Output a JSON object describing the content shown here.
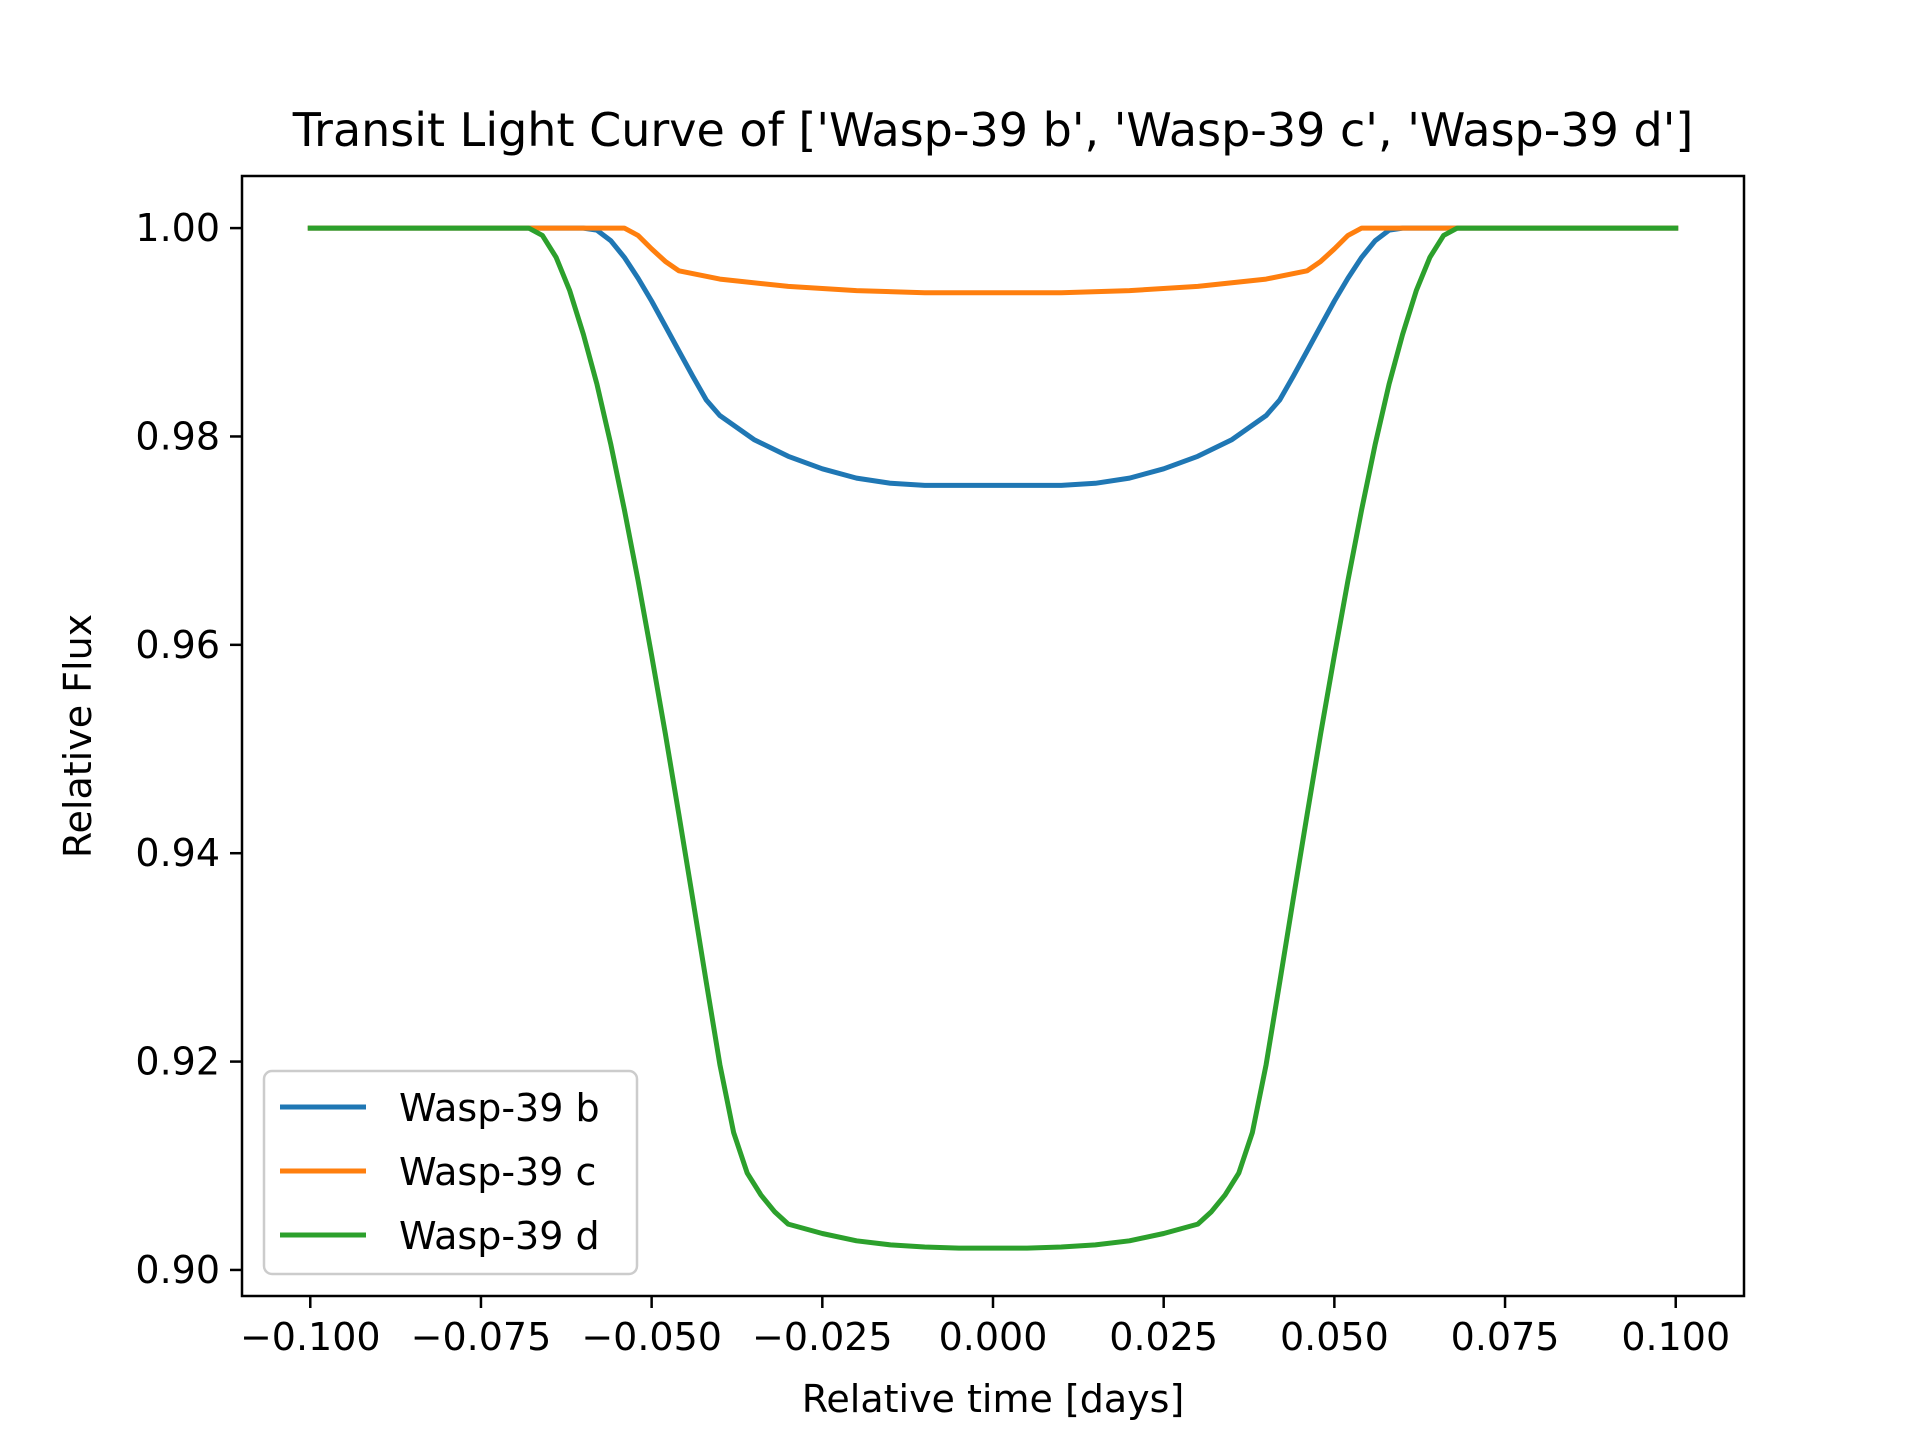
{
  "chart_data": {
    "type": "line",
    "title": "Transit Light Curve of ['Wasp-39 b', 'Wasp-39 c', 'Wasp-39 d']",
    "xlabel": "Relative time [days]",
    "ylabel": "Relative Flux",
    "xlim": [
      -0.11,
      0.11
    ],
    "ylim": [
      0.8975,
      1.005
    ],
    "x_ticks": [
      -0.1,
      -0.075,
      -0.05,
      -0.025,
      0.0,
      0.025,
      0.05,
      0.075,
      0.1
    ],
    "x_tick_labels": [
      "−0.100",
      "−0.075",
      "−0.050",
      "−0.025",
      "0.000",
      "0.025",
      "0.050",
      "0.075",
      "0.100"
    ],
    "y_ticks": [
      0.9,
      0.92,
      0.94,
      0.96,
      0.98,
      1.0
    ],
    "y_tick_labels": [
      "0.90",
      "0.92",
      "0.94",
      "0.96",
      "0.98",
      "1.00"
    ],
    "grid": false,
    "legend_position": "lower-left",
    "series": [
      {
        "name": "Wasp-39 b",
        "color": "#1f77b4",
        "x": [
          -0.1,
          -0.08,
          -0.06,
          -0.058,
          -0.056,
          -0.054,
          -0.052,
          -0.05,
          -0.048,
          -0.046,
          -0.044,
          -0.042,
          -0.04,
          -0.035,
          -0.03,
          -0.025,
          -0.02,
          -0.015,
          -0.01,
          -0.005,
          0.0,
          0.005,
          0.01,
          0.015,
          0.02,
          0.025,
          0.03,
          0.035,
          0.04,
          0.042,
          0.044,
          0.046,
          0.048,
          0.05,
          0.052,
          0.054,
          0.056,
          0.058,
          0.06,
          0.08,
          0.1
        ],
        "y": [
          1.0,
          1.0,
          1.0,
          0.9998,
          0.9988,
          0.9972,
          0.9952,
          0.993,
          0.9906,
          0.9882,
          0.9858,
          0.9835,
          0.982,
          0.9797,
          0.9781,
          0.9769,
          0.976,
          0.9755,
          0.9753,
          0.9753,
          0.9753,
          0.9753,
          0.9753,
          0.9755,
          0.976,
          0.9769,
          0.9781,
          0.9797,
          0.982,
          0.9835,
          0.9858,
          0.9882,
          0.9906,
          0.993,
          0.9952,
          0.9972,
          0.9988,
          0.9998,
          1.0,
          1.0,
          1.0
        ]
      },
      {
        "name": "Wasp-39 c",
        "color": "#ff7f0e",
        "x": [
          -0.1,
          -0.07,
          -0.054,
          -0.052,
          -0.05,
          -0.048,
          -0.046,
          -0.04,
          -0.03,
          -0.02,
          -0.01,
          0.0,
          0.01,
          0.02,
          0.03,
          0.04,
          0.046,
          0.048,
          0.05,
          0.052,
          0.054,
          0.07,
          0.1
        ],
        "y": [
          1.0,
          1.0,
          1.0,
          0.9993,
          0.998,
          0.9968,
          0.9959,
          0.9951,
          0.9944,
          0.994,
          0.9938,
          0.9938,
          0.9938,
          0.994,
          0.9944,
          0.9951,
          0.9959,
          0.9968,
          0.998,
          0.9993,
          1.0,
          1.0,
          1.0
        ]
      },
      {
        "name": "Wasp-39 d",
        "color": "#2ca02c",
        "x": [
          -0.1,
          -0.08,
          -0.068,
          -0.066,
          -0.064,
          -0.062,
          -0.06,
          -0.058,
          -0.056,
          -0.054,
          -0.052,
          -0.05,
          -0.048,
          -0.046,
          -0.044,
          -0.042,
          -0.04,
          -0.038,
          -0.036,
          -0.034,
          -0.032,
          -0.03,
          -0.025,
          -0.02,
          -0.015,
          -0.01,
          -0.005,
          0.0,
          0.005,
          0.01,
          0.015,
          0.02,
          0.025,
          0.03,
          0.032,
          0.034,
          0.036,
          0.038,
          0.04,
          0.042,
          0.044,
          0.046,
          0.048,
          0.05,
          0.052,
          0.054,
          0.056,
          0.058,
          0.06,
          0.062,
          0.064,
          0.066,
          0.068,
          0.08,
          0.1
        ],
        "y": [
          1.0,
          1.0,
          1.0,
          0.9993,
          0.9972,
          0.994,
          0.9898,
          0.985,
          0.9793,
          0.973,
          0.9662,
          0.959,
          0.9515,
          0.9437,
          0.9357,
          0.9276,
          0.9197,
          0.9132,
          0.9093,
          0.9072,
          0.9056,
          0.9044,
          0.9035,
          0.9028,
          0.9024,
          0.9022,
          0.9021,
          0.9021,
          0.9021,
          0.9022,
          0.9024,
          0.9028,
          0.9035,
          0.9044,
          0.9056,
          0.9072,
          0.9093,
          0.9132,
          0.9197,
          0.9276,
          0.9357,
          0.9437,
          0.9515,
          0.959,
          0.9662,
          0.973,
          0.9793,
          0.985,
          0.9898,
          0.994,
          0.9972,
          0.9993,
          1.0,
          1.0,
          1.0
        ]
      }
    ]
  }
}
